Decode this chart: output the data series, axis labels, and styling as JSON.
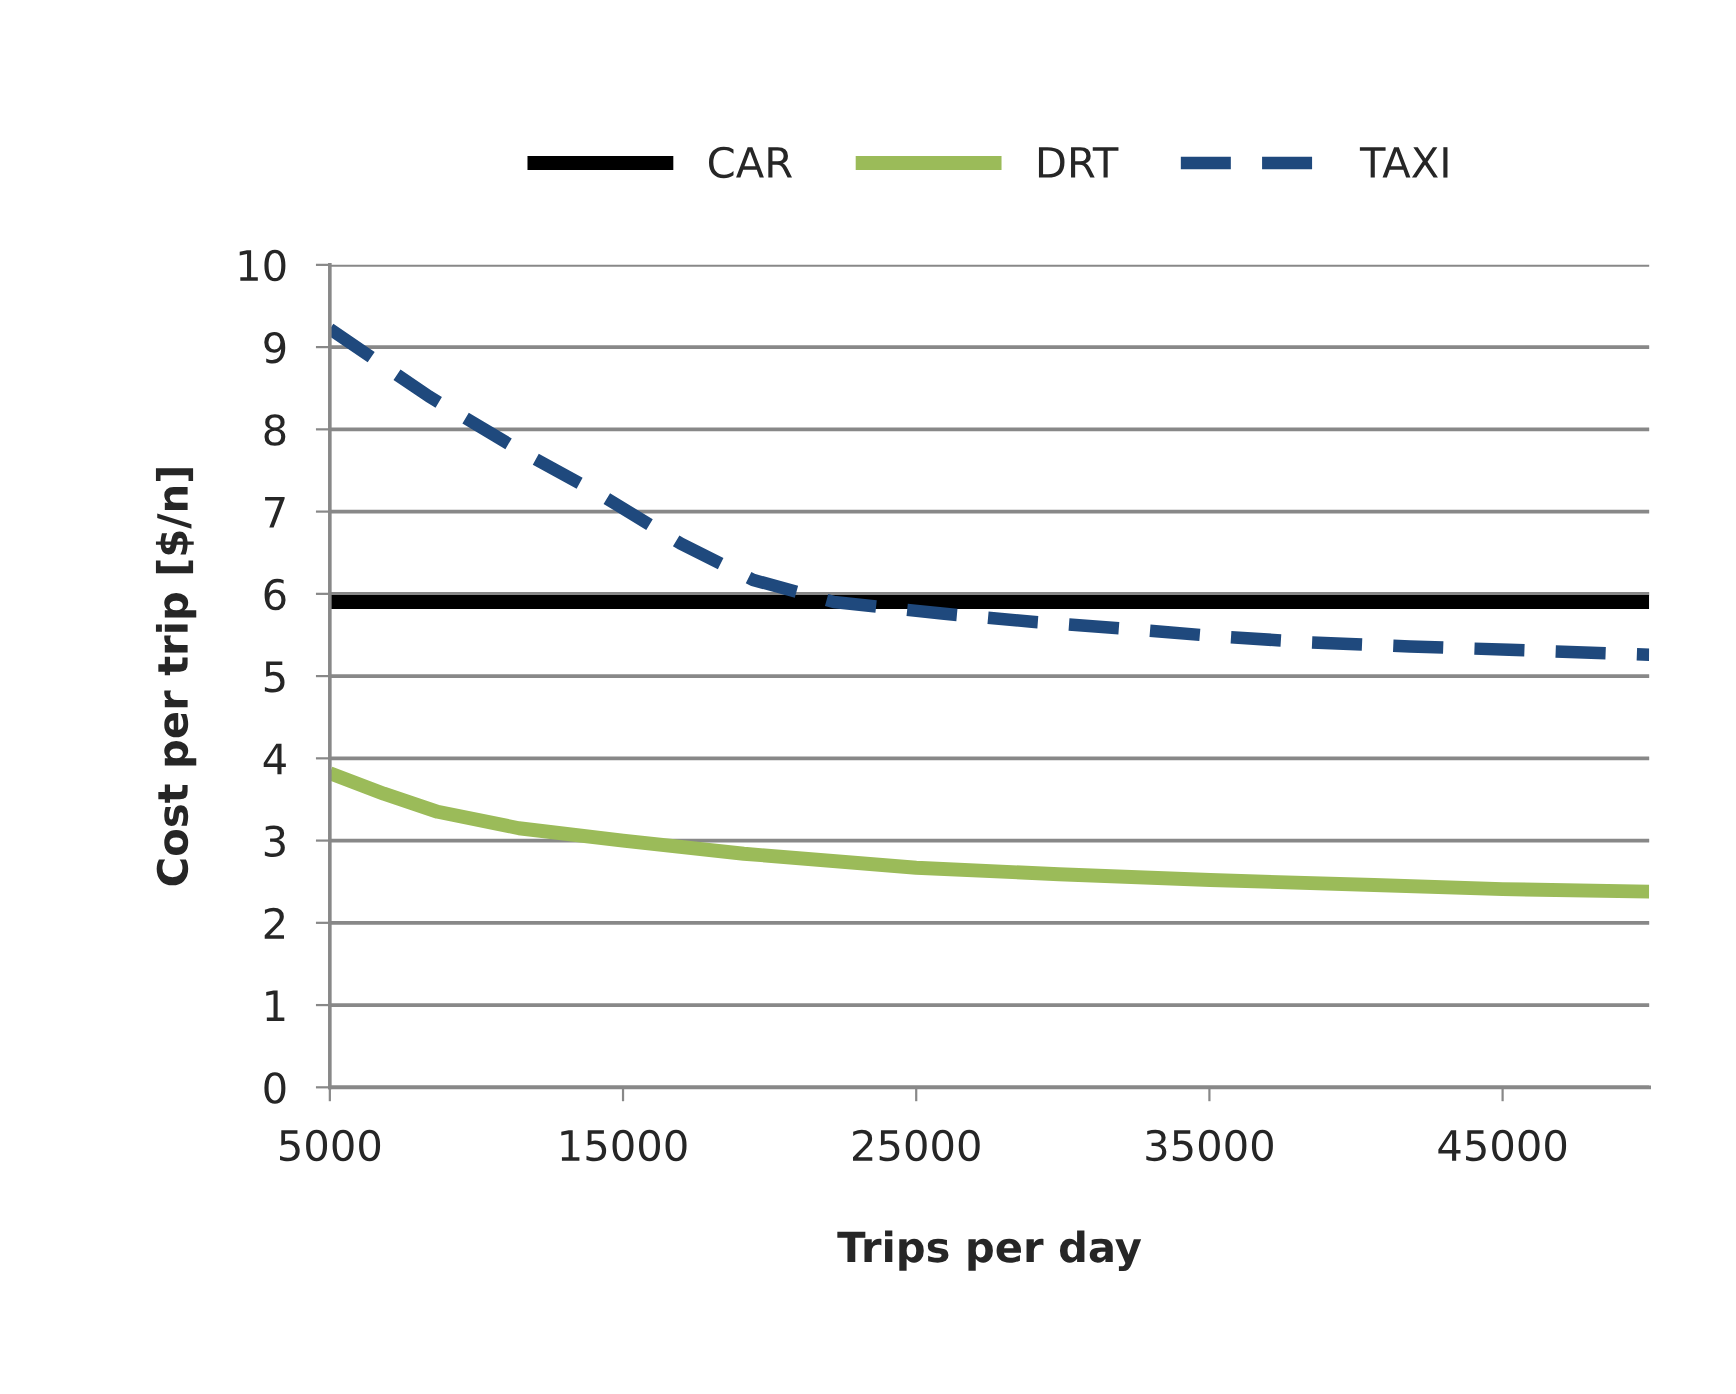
{
  "chart_data": {
    "type": "line",
    "xlabel": "Trips per day",
    "ylabel": "Cost per trip [$/n]",
    "xlim": [
      5000,
      50000
    ],
    "xticks": [
      5000,
      15000,
      25000,
      35000,
      45000
    ],
    "ylim": [
      0,
      10
    ],
    "yticks": [
      0,
      1,
      2,
      3,
      4,
      5,
      6,
      7,
      8,
      9,
      10
    ],
    "grid": "y",
    "legend": "top",
    "marker": "none",
    "series": [
      {
        "name": "CAR",
        "color": "#000000",
        "line_style": "solid",
        "x": [
          5000,
          50000
        ],
        "values": [
          5.9,
          5.9
        ]
      },
      {
        "name": "DRT",
        "color": "#9bbb59",
        "line_style": "solid",
        "x": [
          5000,
          6840,
          8680,
          11450,
          15000,
          19120,
          25000,
          29870,
          35030,
          40620,
          45000,
          50000
        ],
        "values": [
          3.82,
          3.57,
          3.35,
          3.15,
          3.0,
          2.84,
          2.67,
          2.59,
          2.52,
          2.46,
          2.41,
          2.38
        ]
      },
      {
        "name": "TAXI",
        "color": "#1f497d",
        "line_style": "dashed",
        "x": [
          5000,
          8380,
          11450,
          14210,
          16970,
          19430,
          22190,
          25880,
          28950,
          32330,
          35400,
          38470,
          41840,
          45220,
          50000
        ],
        "values": [
          9.22,
          8.4,
          7.75,
          7.21,
          6.61,
          6.17,
          5.9,
          5.76,
          5.66,
          5.57,
          5.48,
          5.41,
          5.36,
          5.32,
          5.26
        ]
      }
    ]
  }
}
